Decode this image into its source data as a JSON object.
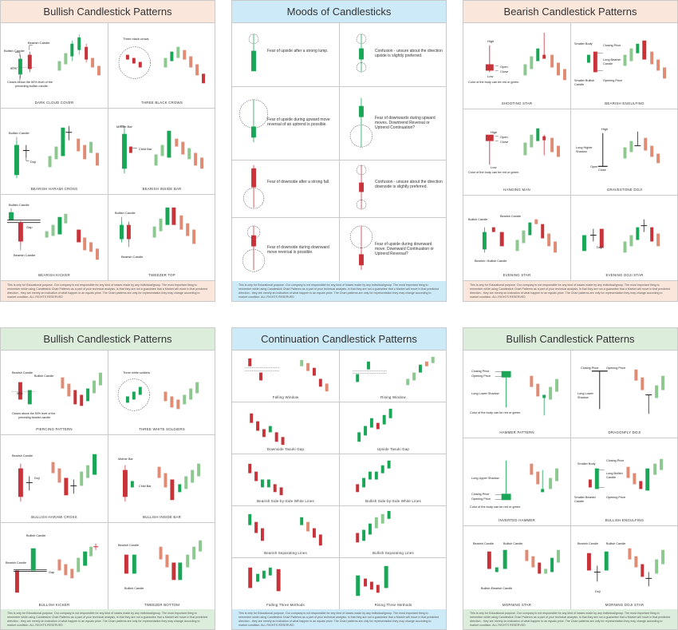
{
  "colors": {
    "bull": "#1aa657",
    "bear": "#c8333a",
    "bull_light": "#8cc88f",
    "bear_light": "#e08c74",
    "head_bullish": "#fbe6dc",
    "head_bearish": "#fbe6dc",
    "head_moods": "#cdeaf8",
    "head_continuation": "#cdeaf8",
    "head_bullish2": "#dceedb",
    "foot_peach": "#fbe6dc",
    "foot_blue": "#cdeaf8",
    "foot_green": "#dceedb"
  },
  "disclaimer": "This is only for Educational purpose. Our company is not responsible for any kind of losses made by any individual/group. The most important thing to remember while using Candlestick Chart Patterns as a part of your technical analysis, is that they are not a guarantee that a Market will move in that predicted direction - they are merely an indication of what happen to an equals price. The Chart patterns are only for representation they may change according to market condition. ALL RIGHTS RESERVED",
  "panels": {
    "p1": {
      "title": "Bullish Candlestick Patterns",
      "cells": [
        {
          "caption": "DARK CLOUD COVER",
          "labels": [
            "Bearish Candle",
            "Bullish Candle",
            "50%",
            "Closes below the 50% level of the",
            "preceding bullish candle."
          ]
        },
        {
          "caption": "THREE BLACK CROWS",
          "labels": [
            "Three black crows"
          ]
        },
        {
          "caption": "BEARISH HARAMI CROSS",
          "labels": [
            "Bullish Candle",
            "Doji"
          ]
        },
        {
          "caption": "BEARISH INSIDE BAR",
          "labels": [
            "Mother Bar",
            "Child Bar"
          ]
        },
        {
          "caption": "BEARISH KICKER",
          "labels": [
            "Bullish Candle",
            "Gap",
            "Bearish Candle"
          ]
        },
        {
          "caption": "TWEEZER TOP",
          "labels": [
            "Bullish Candle",
            "Bearish Candle"
          ]
        }
      ]
    },
    "p2": {
      "title": "Moods of Candlesticks",
      "cells": [
        "Fear of upside after a strong lump.",
        "Confusion - unsure about the direction upside is slightly preferred.",
        "Fear of upside during upward move reversal of an uptrend is possible.",
        "Fear of downwards during upward moves. Downtrend Reversal or Uptrend Continuation?",
        "Fear of downside after a strong fall.",
        "Confusion - unsure about the direction downside is slightly preferred.",
        "Fear of downside during downward move reversal is possible.",
        "Fear of upside during downward move. Downward Continuation or Uptrend Reversal?"
      ]
    },
    "p3": {
      "title": "Bearish Candlestick Patterns",
      "cells": [
        {
          "caption": "SHOOTING STAR",
          "labels": [
            "High",
            "Open",
            "Close",
            "Low",
            "Color of the body can be red or green."
          ]
        },
        {
          "caption": "BEARISH ENGULFING",
          "labels": [
            "Smaller Body",
            "Closing Price",
            "Long Bearish Candle",
            "Smaller Bullish Candle",
            "Opening Price"
          ]
        },
        {
          "caption": "HANGING MAN",
          "labels": [
            "High",
            "Open",
            "Close",
            "Low",
            "Color of the body can be red or green."
          ]
        },
        {
          "caption": "GRAVESTONE DOJI",
          "labels": [
            "High",
            "Long Higher Shadow",
            "Open",
            "Close"
          ]
        },
        {
          "caption": "EVENING STAR",
          "labels": [
            "Bullish Candle",
            "Bearish Candle",
            "Bearish / Bullish Candle"
          ]
        },
        {
          "caption": "EVENING DOJI STAR",
          "labels": [
            "Doji"
          ]
        }
      ]
    },
    "p4": {
      "title": "Bullish Candlestick Patterns",
      "cells": [
        {
          "caption": "PIERCING PATTERN",
          "labels": [
            "Bearish Candle",
            "Bullish Candle",
            "50%",
            "Closes above the 50% level of the",
            "preceding bearish candle."
          ]
        },
        {
          "caption": "THREE WHITE SOLDIERS",
          "labels": [
            "Three white soldiers"
          ]
        },
        {
          "caption": "BULLISH HARAMI CROSS",
          "labels": [
            "Bearish Candle",
            "Doji"
          ]
        },
        {
          "caption": "BULLISH INSIDE BAR",
          "labels": [
            "Mother Bar",
            "Child Bar"
          ]
        },
        {
          "caption": "BULLISH KICKER",
          "labels": [
            "Bullish Candle",
            "Bearish Candle",
            "Gap"
          ]
        },
        {
          "caption": "TWEEZER BOTTOM",
          "labels": [
            "Bearish Candle",
            "Bullish Candle"
          ]
        }
      ]
    },
    "p5": {
      "title": "Continuation Candlestick Patterns",
      "cells": [
        "Falling Window",
        "Rising Window",
        "Downside Tasuki Gap",
        "Upside Tasuki Gap",
        "Bearish Side-by-Side White Lines",
        "Bullish Side-by-Side White Lines",
        "Bearish Separating Lines",
        "Bullish Separating Lines",
        "Falling Three Methods",
        "Rising Three Methods"
      ]
    },
    "p6": {
      "title": "Bullish Candlestick Patterns",
      "cells": [
        {
          "caption": "HAMMER PATTERN",
          "labels": [
            "Closing Price",
            "Opening Price",
            "Long Lower Shadow",
            "Color of the body can be red or green."
          ]
        },
        {
          "caption": "DRAGONFLY DOJI",
          "labels": [
            "Closing Price",
            "Opening Price",
            "Long Lower Shadow"
          ]
        },
        {
          "caption": "INVERTED HAMMER",
          "labels": [
            "Long Upper Shadow",
            "Closing Price",
            "Opening Price",
            "Color of the body can be red or green."
          ]
        },
        {
          "caption": "BULLISH ENGULFING",
          "labels": [
            "Smaller Body",
            "Closing Price",
            "Long Bullish Candle",
            "Smaller Bearish Candle",
            "Opening Price"
          ]
        },
        {
          "caption": "MORNING STAR",
          "labels": [
            "Bearish Candle",
            "Bullish Candle",
            "Bullish /Bearish Candle"
          ]
        },
        {
          "caption": "MORNING DOJI STAR",
          "labels": [
            "Bearish Candle",
            "Bullish Candle",
            "Doji"
          ]
        }
      ]
    }
  }
}
